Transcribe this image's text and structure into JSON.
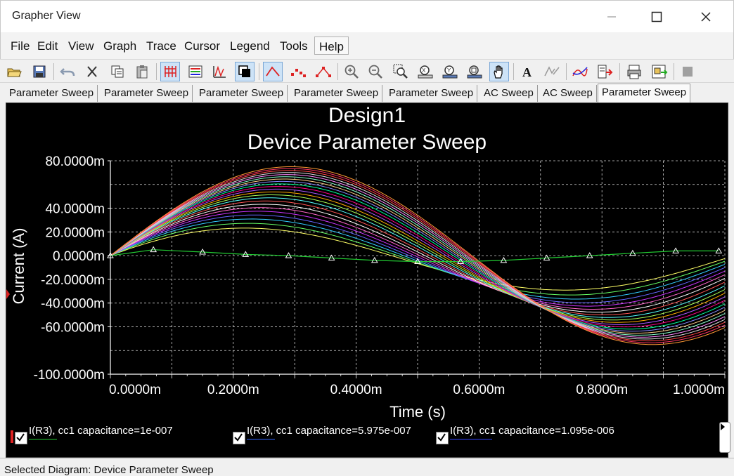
{
  "window": {
    "title": "Grapher View"
  },
  "menu": [
    "File",
    "Edit",
    "View",
    "Graph",
    "Trace",
    "Cursor",
    "Legend",
    "Tools",
    "Help"
  ],
  "toolbar": {
    "icons": [
      "open-icon",
      "save-icon",
      "undo-icon",
      "cut-icon",
      "copy-icon",
      "paste-icon",
      "grid-icon",
      "legend-icon",
      "toggle-plot-icon",
      "reverse-colors-icon",
      "cursors-icon",
      "show-markers-icon",
      "show-lines-icon",
      "zoom-in-icon",
      "zoom-out-icon",
      "zoom-area-icon",
      "zoom-x-icon",
      "zoom-y-icon",
      "zoom-full-icon",
      "pan-icon",
      "font-icon",
      "label-icon",
      "overlay-traces-icon",
      "export-icon",
      "print-icon",
      "page-setup-icon",
      "stop-icon"
    ]
  },
  "tabs": [
    {
      "label": "Parameter Sweep"
    },
    {
      "label": "Parameter Sweep"
    },
    {
      "label": "Parameter Sweep"
    },
    {
      "label": "Parameter Sweep"
    },
    {
      "label": "Parameter Sweep"
    },
    {
      "label": "AC Sweep"
    },
    {
      "label": "AC Sweep"
    },
    {
      "label": "Parameter Sweep",
      "active": true
    }
  ],
  "colors": {
    "plot_bg": "#000000",
    "grid": "#d0d0d0",
    "text": "#ffffff"
  },
  "chart_data": {
    "type": "line",
    "title": "Design1",
    "subtitle": "Device Parameter Sweep",
    "xlabel": "Time (s)",
    "ylabel": "Current (A)",
    "xlim": [
      0,
      0.001
    ],
    "ylim": [
      -0.1,
      0.08
    ],
    "x_ticks": [
      "0.0000m",
      "0.2000m",
      "0.4000m",
      "0.6000m",
      "0.8000m",
      "1.0000m"
    ],
    "y_ticks": [
      {
        "value": 0.08,
        "label": "80.0000m"
      },
      {
        "value": 0.04,
        "label": "40.0000m"
      },
      {
        "value": 0.02,
        "label": "20.0000m"
      },
      {
        "value": 0.0,
        "label": "0.0000m"
      },
      {
        "value": -0.02,
        "label": "-20.0000m"
      },
      {
        "value": -0.04,
        "label": "-40.0000m"
      },
      {
        "value": -0.06,
        "label": "-60.0000m"
      },
      {
        "value": -0.1,
        "label": "-100.0000m"
      }
    ],
    "grid": true,
    "legend_position": "bottom",
    "legend": [
      {
        "label": "I(R3), cc1 capacitance=1e-007",
        "color": "#22cc33"
      },
      {
        "label": "I(R3), cc1 capacitance=5.975e-007",
        "color": "#3366ff"
      },
      {
        "label": "I(R3), cc1 capacitance=1.095e-006",
        "color": "#3344ff"
      }
    ],
    "series": [
      {
        "name": "I(R3), cc1 capacitance=1e-007",
        "color": "#22cc33",
        "markers": true,
        "x": [
          0,
          7e-05,
          0.00015,
          0.00022,
          0.00029,
          0.00036,
          0.00043,
          0.0005,
          0.00057,
          0.00064,
          0.00071,
          0.00078,
          0.00085,
          0.00092,
          0.00099
        ],
        "y": [
          0,
          0.005,
          0.003,
          0.001,
          0.0,
          -0.002,
          -0.004,
          -0.005,
          -0.005,
          -0.004,
          -0.002,
          0.0,
          0.002,
          0.004,
          0.004
        ]
      }
    ]
  },
  "status": {
    "text": "Selected Diagram: Device Parameter Sweep"
  }
}
